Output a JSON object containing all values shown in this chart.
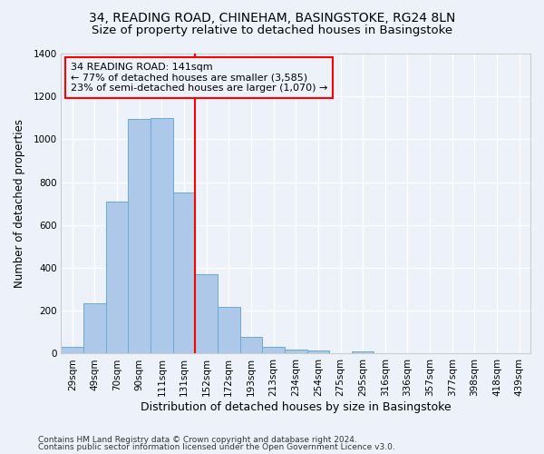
{
  "title1": "34, READING ROAD, CHINEHAM, BASINGSTOKE, RG24 8LN",
  "title2": "Size of property relative to detached houses in Basingstoke",
  "xlabel": "Distribution of detached houses by size in Basingstoke",
  "ylabel": "Number of detached properties",
  "footnote1": "Contains HM Land Registry data © Crown copyright and database right 2024.",
  "footnote2": "Contains public sector information licensed under the Open Government Licence v3.0.",
  "annotation_line1": "34 READING ROAD: 141sqm",
  "annotation_line2": "← 77% of detached houses are smaller (3,585)",
  "annotation_line3": "23% of semi-detached houses are larger (1,070) →",
  "bar_labels": [
    "29sqm",
    "49sqm",
    "70sqm",
    "90sqm",
    "111sqm",
    "131sqm",
    "152sqm",
    "172sqm",
    "193sqm",
    "213sqm",
    "234sqm",
    "254sqm",
    "275sqm",
    "295sqm",
    "316sqm",
    "336sqm",
    "357sqm",
    "377sqm",
    "398sqm",
    "418sqm",
    "439sqm"
  ],
  "bar_values": [
    30,
    233,
    710,
    1095,
    1100,
    750,
    370,
    220,
    80,
    30,
    20,
    15,
    0,
    12,
    0,
    0,
    0,
    0,
    0,
    0,
    0
  ],
  "bar_color": "#adc8e8",
  "bar_edge_color": "#6aaad4",
  "red_line_x": 5.5,
  "ylim": [
    0,
    1400
  ],
  "yticks": [
    0,
    200,
    400,
    600,
    800,
    1000,
    1200,
    1400
  ],
  "bg_color": "#edf2fa",
  "grid_color": "#ffffff",
  "title_fontsize": 10,
  "subtitle_fontsize": 9.5,
  "xlabel_fontsize": 9,
  "ylabel_fontsize": 8.5,
  "annot_fontsize": 8,
  "tick_fontsize": 7.5,
  "footnote_fontsize": 6.5
}
